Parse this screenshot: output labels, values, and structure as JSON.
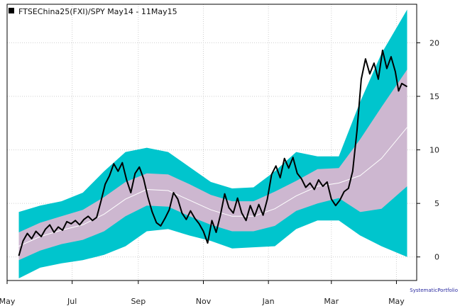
{
  "chart_data": {
    "type": "line",
    "title": "FTSEChina25(FXI)/SPY May14 - 11May15",
    "credit": "SystematicPortfolio",
    "x_range": [
      "2014-05-01",
      "2015-05-20"
    ],
    "x_ticks": [
      {
        "date": "2014-05-01",
        "label": "May"
      },
      {
        "date": "2014-07-01",
        "label": "Jul"
      },
      {
        "date": "2014-09-01",
        "label": "Sep"
      },
      {
        "date": "2014-11-01",
        "label": "Nov"
      },
      {
        "date": "2015-01-01",
        "label": "Jan"
      },
      {
        "date": "2015-03-01",
        "label": "Mar"
      },
      {
        "date": "2015-05-01",
        "label": "May"
      }
    ],
    "y_ticks": [
      0,
      5,
      10,
      15,
      20
    ],
    "ylim": [
      -2.2,
      23.6
    ],
    "grid": true,
    "legend_position": "top-left",
    "colors": {
      "series_line": "#000000",
      "inner_band": "#cdb7d0",
      "outer_band": "#00c5cd",
      "mean_line": "#ffffff"
    },
    "series": [
      {
        "name": "FTSEChina25(FXI)/SPY",
        "points": [
          [
            "2014-05-12",
            0.1
          ],
          [
            "2014-05-16",
            1.5
          ],
          [
            "2014-05-20",
            2.2
          ],
          [
            "2014-05-24",
            1.7
          ],
          [
            "2014-05-28",
            2.4
          ],
          [
            "2014-06-02",
            1.9
          ],
          [
            "2014-06-06",
            2.6
          ],
          [
            "2014-06-10",
            3.0
          ],
          [
            "2014-06-14",
            2.3
          ],
          [
            "2014-06-18",
            2.8
          ],
          [
            "2014-06-22",
            2.5
          ],
          [
            "2014-06-26",
            3.3
          ],
          [
            "2014-06-30",
            3.1
          ],
          [
            "2014-07-04",
            3.4
          ],
          [
            "2014-07-08",
            3.0
          ],
          [
            "2014-07-12",
            3.5
          ],
          [
            "2014-07-16",
            3.8
          ],
          [
            "2014-07-20",
            3.4
          ],
          [
            "2014-07-24",
            3.7
          ],
          [
            "2014-07-28",
            5.2
          ],
          [
            "2014-08-01",
            6.8
          ],
          [
            "2014-08-05",
            7.6
          ],
          [
            "2014-08-09",
            8.7
          ],
          [
            "2014-08-13",
            8.0
          ],
          [
            "2014-08-17",
            8.8
          ],
          [
            "2014-08-21",
            7.2
          ],
          [
            "2014-08-25",
            6.0
          ],
          [
            "2014-08-29",
            7.8
          ],
          [
            "2014-09-02",
            8.4
          ],
          [
            "2014-09-06",
            7.3
          ],
          [
            "2014-09-10",
            5.6
          ],
          [
            "2014-09-14",
            4.2
          ],
          [
            "2014-09-18",
            3.2
          ],
          [
            "2014-09-22",
            2.9
          ],
          [
            "2014-09-26",
            3.6
          ],
          [
            "2014-09-30",
            4.4
          ],
          [
            "2014-10-04",
            6.0
          ],
          [
            "2014-10-08",
            5.4
          ],
          [
            "2014-10-12",
            4.1
          ],
          [
            "2014-10-16",
            3.5
          ],
          [
            "2014-10-20",
            4.3
          ],
          [
            "2014-10-24",
            3.6
          ],
          [
            "2014-10-28",
            3.1
          ],
          [
            "2014-11-01",
            2.4
          ],
          [
            "2014-11-05",
            1.3
          ],
          [
            "2014-11-09",
            3.4
          ],
          [
            "2014-11-13",
            2.3
          ],
          [
            "2014-11-17",
            3.9
          ],
          [
            "2014-11-21",
            5.9
          ],
          [
            "2014-11-25",
            4.6
          ],
          [
            "2014-11-29",
            4.1
          ],
          [
            "2014-12-03",
            5.5
          ],
          [
            "2014-12-07",
            4.1
          ],
          [
            "2014-12-11",
            3.4
          ],
          [
            "2014-12-15",
            4.8
          ],
          [
            "2014-12-19",
            3.8
          ],
          [
            "2014-12-23",
            4.9
          ],
          [
            "2014-12-27",
            3.9
          ],
          [
            "2014-12-31",
            5.4
          ],
          [
            "2015-01-04",
            7.7
          ],
          [
            "2015-01-08",
            8.5
          ],
          [
            "2015-01-12",
            7.4
          ],
          [
            "2015-01-16",
            9.2
          ],
          [
            "2015-01-20",
            8.3
          ],
          [
            "2015-01-24",
            9.3
          ],
          [
            "2015-01-28",
            7.8
          ],
          [
            "2015-02-01",
            7.3
          ],
          [
            "2015-02-05",
            6.5
          ],
          [
            "2015-02-09",
            6.9
          ],
          [
            "2015-02-13",
            6.3
          ],
          [
            "2015-02-17",
            7.2
          ],
          [
            "2015-02-21",
            6.6
          ],
          [
            "2015-02-25",
            7.0
          ],
          [
            "2015-03-01",
            5.4
          ],
          [
            "2015-03-05",
            4.8
          ],
          [
            "2015-03-09",
            5.3
          ],
          [
            "2015-03-13",
            6.1
          ],
          [
            "2015-03-17",
            6.4
          ],
          [
            "2015-03-21",
            8.0
          ],
          [
            "2015-03-25",
            11.8
          ],
          [
            "2015-03-29",
            16.6
          ],
          [
            "2015-04-02",
            18.5
          ],
          [
            "2015-04-06",
            17.1
          ],
          [
            "2015-04-10",
            18.1
          ],
          [
            "2015-04-14",
            16.6
          ],
          [
            "2015-04-18",
            19.3
          ],
          [
            "2015-04-22",
            17.6
          ],
          [
            "2015-04-26",
            18.7
          ],
          [
            "2015-04-30",
            17.3
          ],
          [
            "2015-05-03",
            15.5
          ],
          [
            "2015-05-06",
            16.2
          ],
          [
            "2015-05-11",
            15.9
          ]
        ]
      }
    ],
    "bands": {
      "dates": [
        "2014-05-12",
        "2014-06-01",
        "2014-06-21",
        "2014-07-11",
        "2014-07-31",
        "2014-08-20",
        "2014-09-09",
        "2014-09-29",
        "2014-10-19",
        "2014-11-08",
        "2014-11-28",
        "2014-12-18",
        "2015-01-07",
        "2015-01-27",
        "2015-02-16",
        "2015-03-08",
        "2015-03-28",
        "2015-04-17",
        "2015-05-11"
      ],
      "mean": [
        1.0,
        1.9,
        2.5,
        3.0,
        4.0,
        5.4,
        6.3,
        6.2,
        5.3,
        4.4,
        3.8,
        3.8,
        4.5,
        5.7,
        6.6,
        6.9,
        7.6,
        9.2,
        12.1
      ],
      "inner_upper": [
        2.3,
        3.2,
        3.8,
        4.4,
        5.6,
        7.0,
        7.8,
        7.7,
        6.8,
        5.8,
        5.2,
        5.2,
        6.1,
        7.1,
        8.2,
        8.3,
        11.0,
        14.0,
        17.5
      ],
      "inner_lower": [
        -0.3,
        0.6,
        1.2,
        1.6,
        2.4,
        3.8,
        4.8,
        4.7,
        3.8,
        3.0,
        2.4,
        2.4,
        2.9,
        4.3,
        5.0,
        5.5,
        4.2,
        4.5,
        6.6
      ],
      "outer_upper": [
        4.2,
        4.8,
        5.2,
        6.0,
        8.0,
        9.8,
        10.2,
        9.8,
        8.4,
        7.0,
        6.4,
        6.5,
        8.0,
        9.8,
        9.4,
        9.4,
        14.5,
        19.0,
        23.1
      ],
      "outer_lower": [
        -2.0,
        -1.0,
        -0.6,
        -0.3,
        0.2,
        1.0,
        2.4,
        2.6,
        2.0,
        1.5,
        0.8,
        0.9,
        1.0,
        2.6,
        3.4,
        3.4,
        2.0,
        1.0,
        0.0
      ]
    }
  }
}
